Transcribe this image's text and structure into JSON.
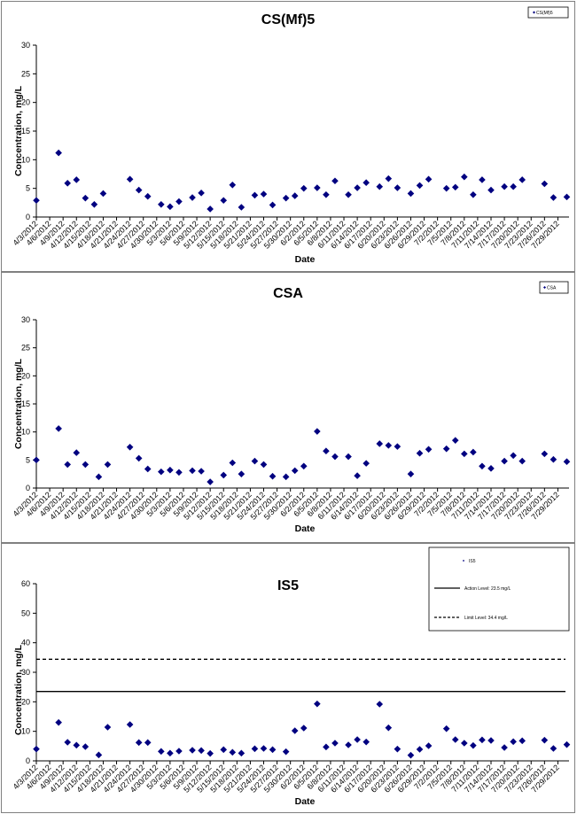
{
  "chart_data": [
    {
      "type": "scatter",
      "title": "CS(Mf)5",
      "xlabel": "Date",
      "ylabel": "Concentration, mg/L",
      "ylim": [
        0,
        30
      ],
      "yticks": [
        0,
        5,
        10,
        15,
        20,
        25,
        30
      ],
      "xticklabels": [
        "4/3/2012",
        "4/6/2012",
        "4/9/2012",
        "4/12/2012",
        "4/15/2012",
        "4/18/2012",
        "4/21/2012",
        "4/24/2012",
        "4/27/2012",
        "4/30/2012",
        "5/3/2012",
        "5/6/2012",
        "5/9/2012",
        "5/12/2012",
        "5/15/2012",
        "5/18/2012",
        "5/21/2012",
        "5/24/2012",
        "5/27/2012",
        "5/30/2012",
        "6/2/2012",
        "6/5/2012",
        "6/8/2012",
        "6/11/2012",
        "6/14/2012",
        "6/17/2012",
        "6/20/2012",
        "6/23/2012",
        "6/26/2012",
        "6/29/2012",
        "7/2/2012",
        "7/5/2012",
        "7/8/2012",
        "7/11/2012",
        "7/14/2012",
        "7/17/2012",
        "7/20/2012",
        "7/23/2012",
        "7/26/2012",
        "7/29/2012"
      ],
      "legend": {
        "position": "top-right",
        "entries": [
          "CS(Mf)5"
        ]
      },
      "series": [
        {
          "name": "CS(Mf)5",
          "color": "#000080",
          "points": [
            [
              "4/3/2012",
              2.9
            ],
            [
              "4/8/2012",
              11.2
            ],
            [
              "4/10/2012",
              5.9
            ],
            [
              "4/12/2012",
              6.5
            ],
            [
              "4/14/2012",
              3.3
            ],
            [
              "4/16/2012",
              2.2
            ],
            [
              "4/18/2012",
              4.1
            ],
            [
              "4/24/2012",
              6.6
            ],
            [
              "4/26/2012",
              4.7
            ],
            [
              "4/28/2012",
              3.6
            ],
            [
              "5/1/2012",
              2.2
            ],
            [
              "5/3/2012",
              1.8
            ],
            [
              "5/5/2012",
              2.7
            ],
            [
              "5/8/2012",
              3.4
            ],
            [
              "5/10/2012",
              4.2
            ],
            [
              "5/12/2012",
              1.4
            ],
            [
              "5/15/2012",
              2.9
            ],
            [
              "5/17/2012",
              5.6
            ],
            [
              "5/19/2012",
              1.7
            ],
            [
              "5/22/2012",
              3.8
            ],
            [
              "5/24/2012",
              4.0
            ],
            [
              "5/26/2012",
              2.1
            ],
            [
              "5/29/2012",
              3.3
            ],
            [
              "5/31/2012",
              3.7
            ],
            [
              "6/2/2012",
              5.0
            ],
            [
              "6/5/2012",
              5.1
            ],
            [
              "6/7/2012",
              3.9
            ],
            [
              "6/9/2012",
              6.3
            ],
            [
              "6/12/2012",
              3.9
            ],
            [
              "6/14/2012",
              5.1
            ],
            [
              "6/16/2012",
              6.0
            ],
            [
              "6/19/2012",
              5.3
            ],
            [
              "6/21/2012",
              6.7
            ],
            [
              "6/23/2012",
              5.1
            ],
            [
              "6/26/2012",
              4.1
            ],
            [
              "6/28/2012",
              5.5
            ],
            [
              "6/30/2012",
              6.6
            ],
            [
              "7/4/2012",
              5.0
            ],
            [
              "7/6/2012",
              5.2
            ],
            [
              "7/8/2012",
              7.0
            ],
            [
              "7/10/2012",
              3.9
            ],
            [
              "7/12/2012",
              6.5
            ],
            [
              "7/14/2012",
              4.7
            ],
            [
              "7/17/2012",
              5.3
            ],
            [
              "7/19/2012",
              5.3
            ],
            [
              "7/21/2012",
              6.5
            ],
            [
              "7/26/2012",
              5.8
            ],
            [
              "7/28/2012",
              3.4
            ],
            [
              "7/31/2012",
              3.5
            ]
          ]
        }
      ]
    },
    {
      "type": "scatter",
      "title": "CSA",
      "xlabel": "Date",
      "ylabel": "Concentration, mg/L",
      "ylim": [
        0,
        30
      ],
      "yticks": [
        0,
        5,
        10,
        15,
        20,
        25,
        30
      ],
      "xticklabels": [
        "4/3/2012",
        "4/6/2012",
        "4/9/2012",
        "4/12/2012",
        "4/15/2012",
        "4/18/2012",
        "4/21/2012",
        "4/24/2012",
        "4/27/2012",
        "4/30/2012",
        "5/3/2012",
        "5/6/2012",
        "5/9/2012",
        "5/12/2012",
        "5/15/2012",
        "5/18/2012",
        "5/21/2012",
        "5/24/2012",
        "5/27/2012",
        "5/30/2012",
        "6/2/2012",
        "6/5/2012",
        "6/8/2012",
        "6/11/2012",
        "6/14/2012",
        "6/17/2012",
        "6/20/2012",
        "6/23/2012",
        "6/26/2012",
        "6/29/2012",
        "7/2/2012",
        "7/5/2012",
        "7/8/2012",
        "7/11/2012",
        "7/14/2012",
        "7/17/2012",
        "7/20/2012",
        "7/23/2012",
        "7/26/2012",
        "7/29/2012"
      ],
      "legend": {
        "position": "top-right",
        "entries": [
          "CSA"
        ]
      },
      "series": [
        {
          "name": "CSA",
          "color": "#000080",
          "points": [
            [
              "4/3/2012",
              5.0
            ],
            [
              "4/8/2012",
              10.6
            ],
            [
              "4/10/2012",
              4.2
            ],
            [
              "4/12/2012",
              6.3
            ],
            [
              "4/14/2012",
              4.2
            ],
            [
              "4/17/2012",
              2.0
            ],
            [
              "4/19/2012",
              4.2
            ],
            [
              "4/24/2012",
              7.3
            ],
            [
              "4/26/2012",
              5.3
            ],
            [
              "4/28/2012",
              3.4
            ],
            [
              "5/1/2012",
              2.9
            ],
            [
              "5/3/2012",
              3.2
            ],
            [
              "5/5/2012",
              2.8
            ],
            [
              "5/8/2012",
              3.1
            ],
            [
              "5/10/2012",
              3.0
            ],
            [
              "5/12/2012",
              1.1
            ],
            [
              "5/15/2012",
              2.3
            ],
            [
              "5/17/2012",
              4.5
            ],
            [
              "5/19/2012",
              2.5
            ],
            [
              "5/22/2012",
              4.8
            ],
            [
              "5/24/2012",
              4.2
            ],
            [
              "5/26/2012",
              2.1
            ],
            [
              "5/29/2012",
              2.0
            ],
            [
              "5/31/2012",
              3.1
            ],
            [
              "6/2/2012",
              3.9
            ],
            [
              "6/5/2012",
              10.1
            ],
            [
              "6/7/2012",
              6.6
            ],
            [
              "6/9/2012",
              5.6
            ],
            [
              "6/12/2012",
              5.6
            ],
            [
              "6/14/2012",
              2.2
            ],
            [
              "6/16/2012",
              4.4
            ],
            [
              "6/19/2012",
              7.9
            ],
            [
              "6/21/2012",
              7.6
            ],
            [
              "6/23/2012",
              7.4
            ],
            [
              "6/26/2012",
              2.5
            ],
            [
              "6/28/2012",
              6.2
            ],
            [
              "6/30/2012",
              6.9
            ],
            [
              "7/4/2012",
              7.0
            ],
            [
              "7/6/2012",
              8.5
            ],
            [
              "7/8/2012",
              6.1
            ],
            [
              "7/10/2012",
              6.4
            ],
            [
              "7/12/2012",
              3.9
            ],
            [
              "7/14/2012",
              3.5
            ],
            [
              "7/17/2012",
              4.8
            ],
            [
              "7/19/2012",
              5.8
            ],
            [
              "7/21/2012",
              4.8
            ],
            [
              "7/26/2012",
              6.1
            ],
            [
              "7/28/2012",
              5.1
            ],
            [
              "7/31/2012",
              4.7
            ]
          ]
        }
      ]
    },
    {
      "type": "scatter",
      "title": "IS5",
      "xlabel": "Date",
      "ylabel": "Concentration, mg/L",
      "ylim": [
        0,
        60
      ],
      "yticks": [
        0,
        10,
        20,
        30,
        40,
        50,
        60
      ],
      "xticklabels": [
        "4/3/2012",
        "4/6/2012",
        "4/9/2012",
        "4/12/2012",
        "4/15/2012",
        "4/18/2012",
        "4/21/2012",
        "4/24/2012",
        "4/27/2012",
        "4/30/2012",
        "5/3/2012",
        "5/6/2012",
        "5/9/2012",
        "5/12/2012",
        "5/15/2012",
        "5/18/2012",
        "5/21/2012",
        "5/24/2012",
        "5/27/2012",
        "5/30/2012",
        "6/2/2012",
        "6/5/2012",
        "6/8/2012",
        "6/11/2012",
        "6/14/2012",
        "6/17/2012",
        "6/20/2012",
        "6/23/2012",
        "6/26/2012",
        "6/29/2012",
        "7/2/2012",
        "7/5/2012",
        "7/8/2012",
        "7/11/2012",
        "7/14/2012",
        "7/17/2012",
        "7/20/2012",
        "7/23/2012",
        "7/26/2012",
        "7/29/2012"
      ],
      "legend": {
        "position": "top-right",
        "entries": [
          "IS5",
          "Action Level: 23.5 mg/L",
          "Limit Level: 34.4 mg/L"
        ]
      },
      "reference_lines": [
        {
          "name": "Action Level: 23.5 mg/L",
          "value": 23.5,
          "style": "solid",
          "color": "#000000"
        },
        {
          "name": "Limit Level: 34.4 mg/L",
          "value": 34.4,
          "style": "dashed",
          "color": "#000000"
        }
      ],
      "series": [
        {
          "name": "IS5",
          "color": "#000080",
          "points": [
            [
              "4/3/2012",
              4.0
            ],
            [
              "4/8/2012",
              13.0
            ],
            [
              "4/10/2012",
              6.3
            ],
            [
              "4/12/2012",
              5.3
            ],
            [
              "4/14/2012",
              4.8
            ],
            [
              "4/17/2012",
              2.0
            ],
            [
              "4/19/2012",
              11.4
            ],
            [
              "4/24/2012",
              12.3
            ],
            [
              "4/26/2012",
              6.2
            ],
            [
              "4/28/2012",
              6.2
            ],
            [
              "5/1/2012",
              3.2
            ],
            [
              "5/3/2012",
              2.6
            ],
            [
              "5/5/2012",
              3.3
            ],
            [
              "5/8/2012",
              3.6
            ],
            [
              "5/10/2012",
              3.5
            ],
            [
              "5/12/2012",
              2.5
            ],
            [
              "5/15/2012",
              3.8
            ],
            [
              "5/17/2012",
              2.9
            ],
            [
              "5/19/2012",
              2.6
            ],
            [
              "5/22/2012",
              4.1
            ],
            [
              "5/24/2012",
              4.2
            ],
            [
              "5/26/2012",
              3.8
            ],
            [
              "5/29/2012",
              3.1
            ],
            [
              "5/31/2012",
              10.2
            ],
            [
              "6/2/2012",
              11.1
            ],
            [
              "6/5/2012",
              19.3
            ],
            [
              "6/7/2012",
              4.7
            ],
            [
              "6/9/2012",
              6.0
            ],
            [
              "6/12/2012",
              5.4
            ],
            [
              "6/14/2012",
              7.2
            ],
            [
              "6/16/2012",
              6.4
            ],
            [
              "6/19/2012",
              19.2
            ],
            [
              "6/21/2012",
              11.2
            ],
            [
              "6/23/2012",
              4.0
            ],
            [
              "6/26/2012",
              1.9
            ],
            [
              "6/28/2012",
              3.9
            ],
            [
              "6/30/2012",
              5.1
            ],
            [
              "7/4/2012",
              10.9
            ],
            [
              "7/6/2012",
              7.2
            ],
            [
              "7/8/2012",
              6.0
            ],
            [
              "7/10/2012",
              5.2
            ],
            [
              "7/12/2012",
              7.1
            ],
            [
              "7/14/2012",
              6.9
            ],
            [
              "7/17/2012",
              4.5
            ],
            [
              "7/19/2012",
              6.5
            ],
            [
              "7/21/2012",
              6.8
            ],
            [
              "7/26/2012",
              7.0
            ],
            [
              "7/28/2012",
              4.2
            ],
            [
              "7/31/2012",
              5.5
            ]
          ]
        }
      ]
    }
  ]
}
